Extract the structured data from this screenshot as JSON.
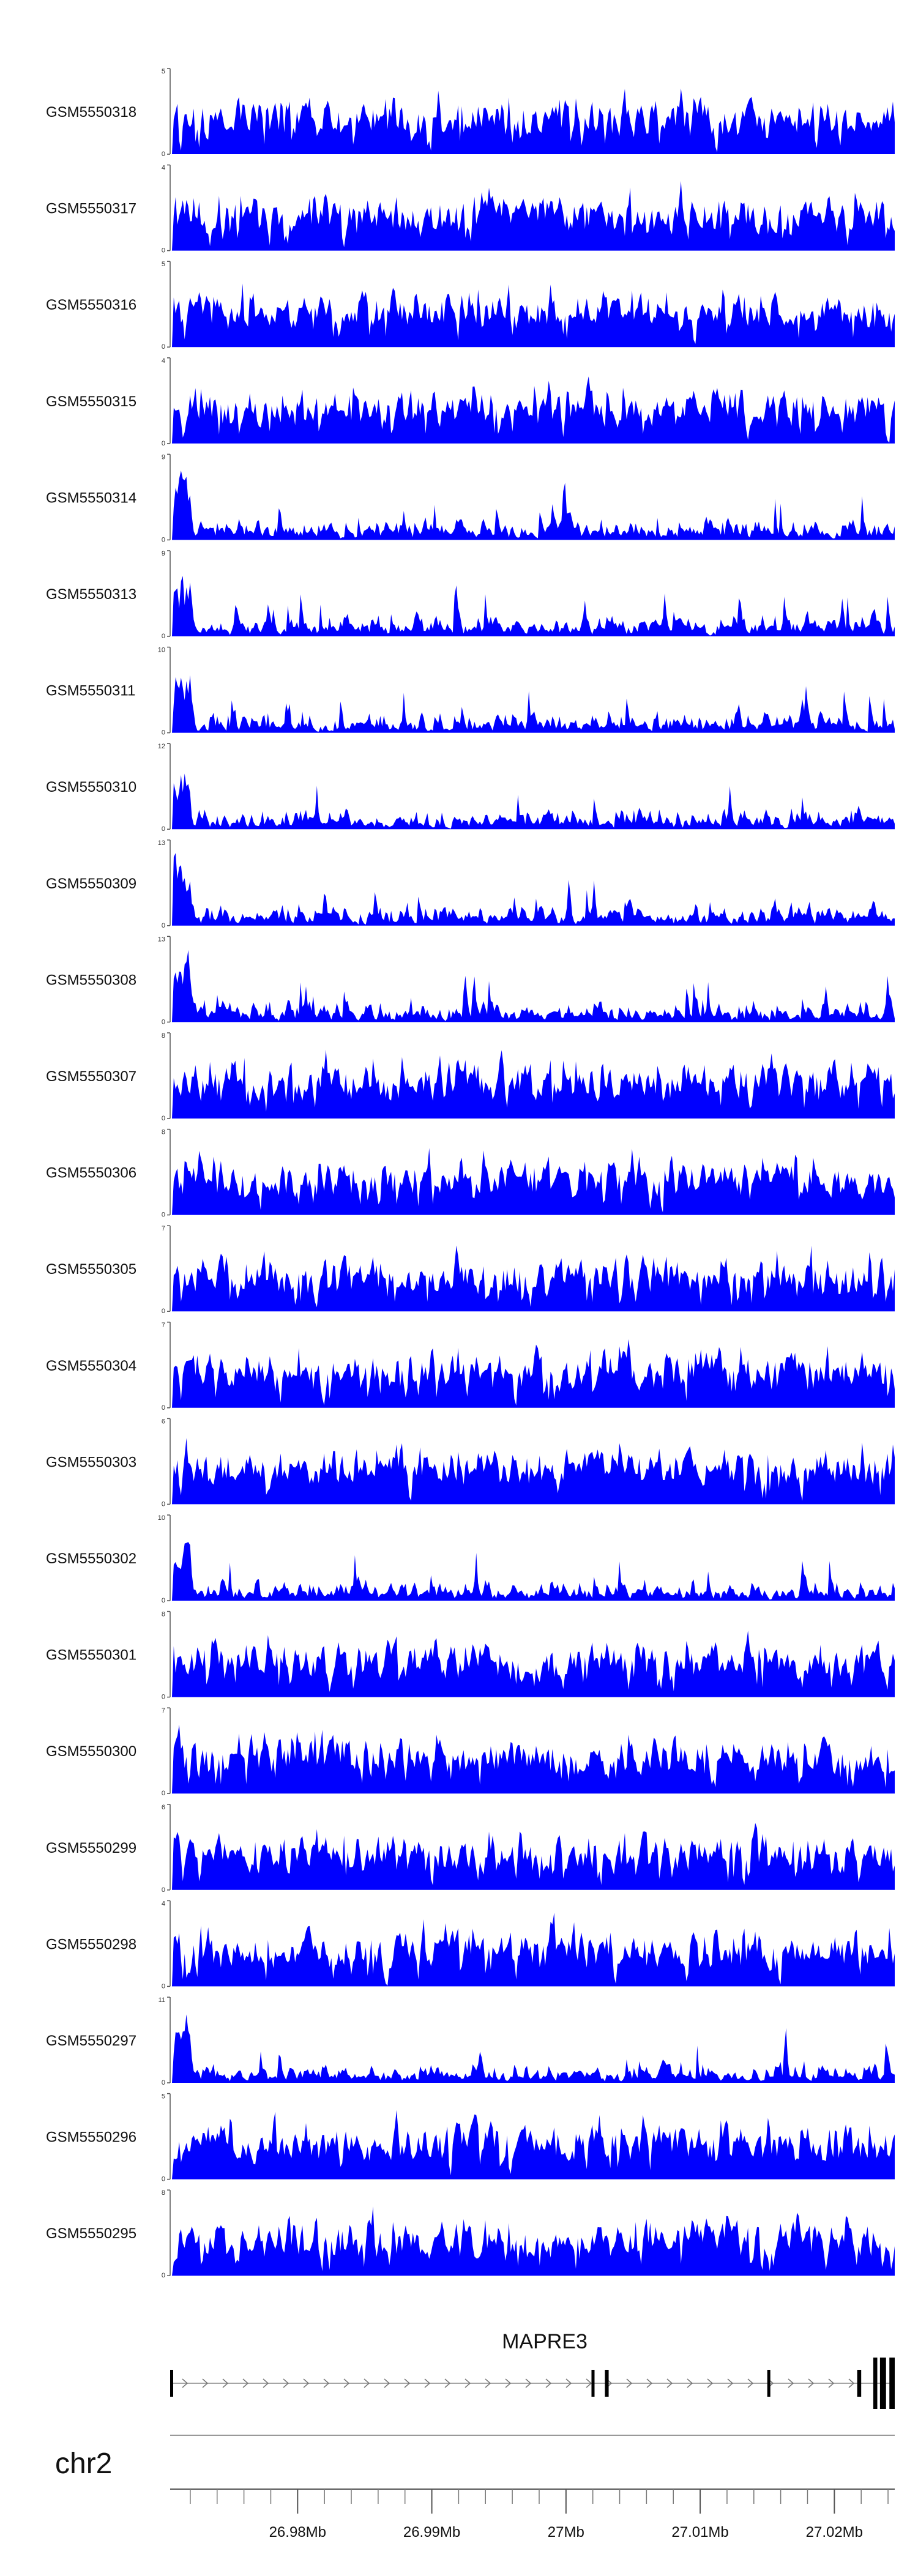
{
  "chart_data": {
    "type": "area",
    "color": "#0000ff",
    "chromosome": "chr2",
    "genome_range_mb": [
      26.9705,
      27.0245
    ],
    "x_ticks": [
      {
        "value": 26.98,
        "label": "26.98Mb"
      },
      {
        "value": 26.99,
        "label": "26.99Mb"
      },
      {
        "value": 27.0,
        "label": "27Mb"
      },
      {
        "value": 27.01,
        "label": "27.01Mb"
      },
      {
        "value": 27.02,
        "label": "27.02Mb"
      }
    ],
    "gene": {
      "name": "MAPRE3",
      "strand": "+",
      "start_mb": 26.9705,
      "end_mb": 27.0245,
      "exons_mb": [
        [
          26.9705,
          26.97063
        ],
        [
          27.0019,
          27.00206
        ],
        [
          27.0029,
          27.00318
        ],
        [
          27.015,
          27.0152
        ],
        [
          27.0217,
          27.022
        ],
        [
          27.0229,
          27.0232
        ],
        [
          27.0234,
          27.02385
        ],
        [
          27.0241,
          27.0245
        ]
      ]
    },
    "tracks": [
      {
        "name": "GSM5550318",
        "ymax": 5
      },
      {
        "name": "GSM5550317",
        "ymax": 4
      },
      {
        "name": "GSM5550316",
        "ymax": 5
      },
      {
        "name": "GSM5550315",
        "ymax": 4
      },
      {
        "name": "GSM5550314",
        "ymax": 9
      },
      {
        "name": "GSM5550313",
        "ymax": 9
      },
      {
        "name": "GSM5550311",
        "ymax": 10
      },
      {
        "name": "GSM5550310",
        "ymax": 12
      },
      {
        "name": "GSM5550309",
        "ymax": 13
      },
      {
        "name": "GSM5550308",
        "ymax": 13
      },
      {
        "name": "GSM5550307",
        "ymax": 8
      },
      {
        "name": "GSM5550306",
        "ymax": 8
      },
      {
        "name": "GSM5550305",
        "ymax": 7
      },
      {
        "name": "GSM5550304",
        "ymax": 7
      },
      {
        "name": "GSM5550303",
        "ymax": 6
      },
      {
        "name": "GSM5550302",
        "ymax": 10
      },
      {
        "name": "GSM5550301",
        "ymax": 8
      },
      {
        "name": "GSM5550300",
        "ymax": 7
      },
      {
        "name": "GSM5550299",
        "ymax": 6
      },
      {
        "name": "GSM5550298",
        "ymax": 4
      },
      {
        "name": "GSM5550297",
        "ymax": 11
      },
      {
        "name": "GSM5550296",
        "ymax": 5
      },
      {
        "name": "GSM5550295",
        "ymax": 8
      }
    ]
  }
}
